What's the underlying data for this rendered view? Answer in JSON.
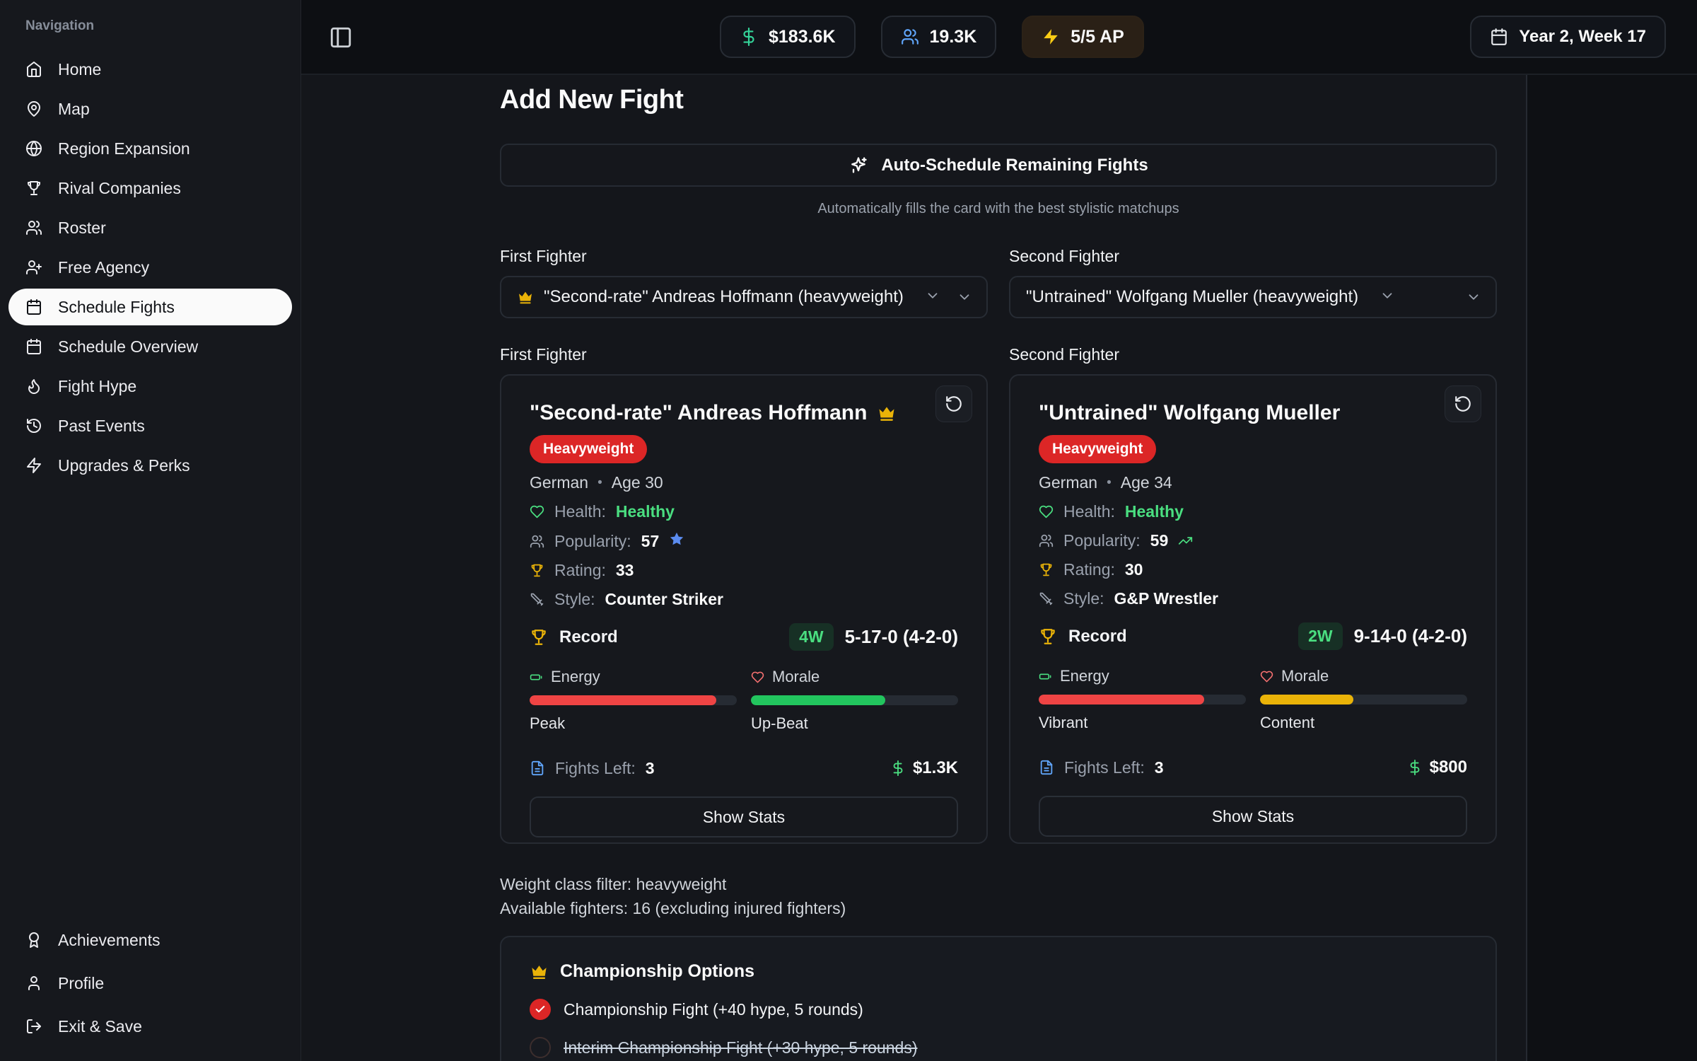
{
  "ui": {
    "dot": "•"
  },
  "topbar": {
    "money": "$183.6K",
    "population": "19.3K",
    "action_points": "5/5 AP",
    "date": "Year 2, Week 17"
  },
  "sidebar": {
    "section_label": "Navigation",
    "items": [
      {
        "label": "Home",
        "icon": "home",
        "active": false
      },
      {
        "label": "Map",
        "icon": "map-pin",
        "active": false
      },
      {
        "label": "Region Expansion",
        "icon": "globe",
        "active": false
      },
      {
        "label": "Rival Companies",
        "icon": "trophy",
        "active": false
      },
      {
        "label": "Roster",
        "icon": "users",
        "active": false
      },
      {
        "label": "Free Agency",
        "icon": "user-plus",
        "active": false
      },
      {
        "label": "Schedule Fights",
        "icon": "calendar",
        "active": true
      },
      {
        "label": "Schedule Overview",
        "icon": "calendar",
        "active": false
      },
      {
        "label": "Fight Hype",
        "icon": "flame",
        "active": false
      },
      {
        "label": "Past Events",
        "icon": "history",
        "active": false
      },
      {
        "label": "Upgrades & Perks",
        "icon": "zap",
        "active": false
      }
    ],
    "footer_items": [
      {
        "label": "Achievements",
        "icon": "award",
        "active": false
      },
      {
        "label": "Profile",
        "icon": "user",
        "active": false
      },
      {
        "label": "Exit & Save",
        "icon": "log-out",
        "active": false
      }
    ]
  },
  "main": {
    "title": "Add New Fight",
    "auto_schedule_label": "Auto-Schedule Remaining Fights",
    "auto_schedule_hint": "Automatically fills the card with the best stylistic matchups",
    "selectors": [
      {
        "label": "First Fighter",
        "value": "\"Second-rate\" Andreas Hoffmann (heavyweight)"
      },
      {
        "label": "Second Fighter",
        "value": "\"Untrained\" Wolfgang Mueller (heavyweight)"
      }
    ],
    "fighters": [
      {
        "section_label": "First Fighter",
        "name": "\"Second-rate\" Andreas Hoffmann",
        "weight_class": "Heavyweight",
        "nationality": "German",
        "age": "Age 30",
        "health_label": "Health:",
        "health": "Healthy",
        "popularity_label": "Popularity:",
        "popularity": "57",
        "rating_label": "Rating:",
        "rating": "33",
        "style_label": "Style:",
        "style": "Counter Striker",
        "record_label": "Record",
        "streak": "4W",
        "record": "5-17-0 (4-2-0)",
        "energy_label": "Energy",
        "energy_pct": 90,
        "energy_color": "#ef4444",
        "energy_state": "Peak",
        "morale_label": "Morale",
        "morale_pct": 65,
        "morale_color": "#22c55e",
        "morale_state": "Up-Beat",
        "fights_left_label": "Fights Left:",
        "fights_left": "3",
        "purse": "$1.3K",
        "show_stats_label": "Show Stats"
      },
      {
        "section_label": "Second Fighter",
        "name": "\"Untrained\" Wolfgang Mueller",
        "weight_class": "Heavyweight",
        "nationality": "German",
        "age": "Age 34",
        "health_label": "Health:",
        "health": "Healthy",
        "popularity_label": "Popularity:",
        "popularity": "59",
        "rating_label": "Rating:",
        "rating": "30",
        "style_label": "Style:",
        "style": "G&P Wrestler",
        "record_label": "Record",
        "streak": "2W",
        "record": "9-14-0 (4-2-0)",
        "energy_label": "Energy",
        "energy_pct": 80,
        "energy_color": "#ef4444",
        "energy_state": "Vibrant",
        "morale_label": "Morale",
        "morale_pct": 45,
        "morale_color": "#eab308",
        "morale_state": "Content",
        "fights_left_label": "Fights Left:",
        "fights_left": "3",
        "purse": "$800",
        "show_stats_label": "Show Stats"
      }
    ],
    "filter_line1": "Weight class filter: heavyweight",
    "filter_line2": "Available fighters: 16 (excluding injured fighters)",
    "championship": {
      "title": "Championship Options",
      "options": [
        {
          "label": "Championship Fight (+40 hype, 5 rounds)",
          "checked": true,
          "struck": false
        },
        {
          "label": "Interim Championship Fight (+30 hype, 5 rounds)",
          "checked": false,
          "struck": true
        }
      ]
    }
  }
}
